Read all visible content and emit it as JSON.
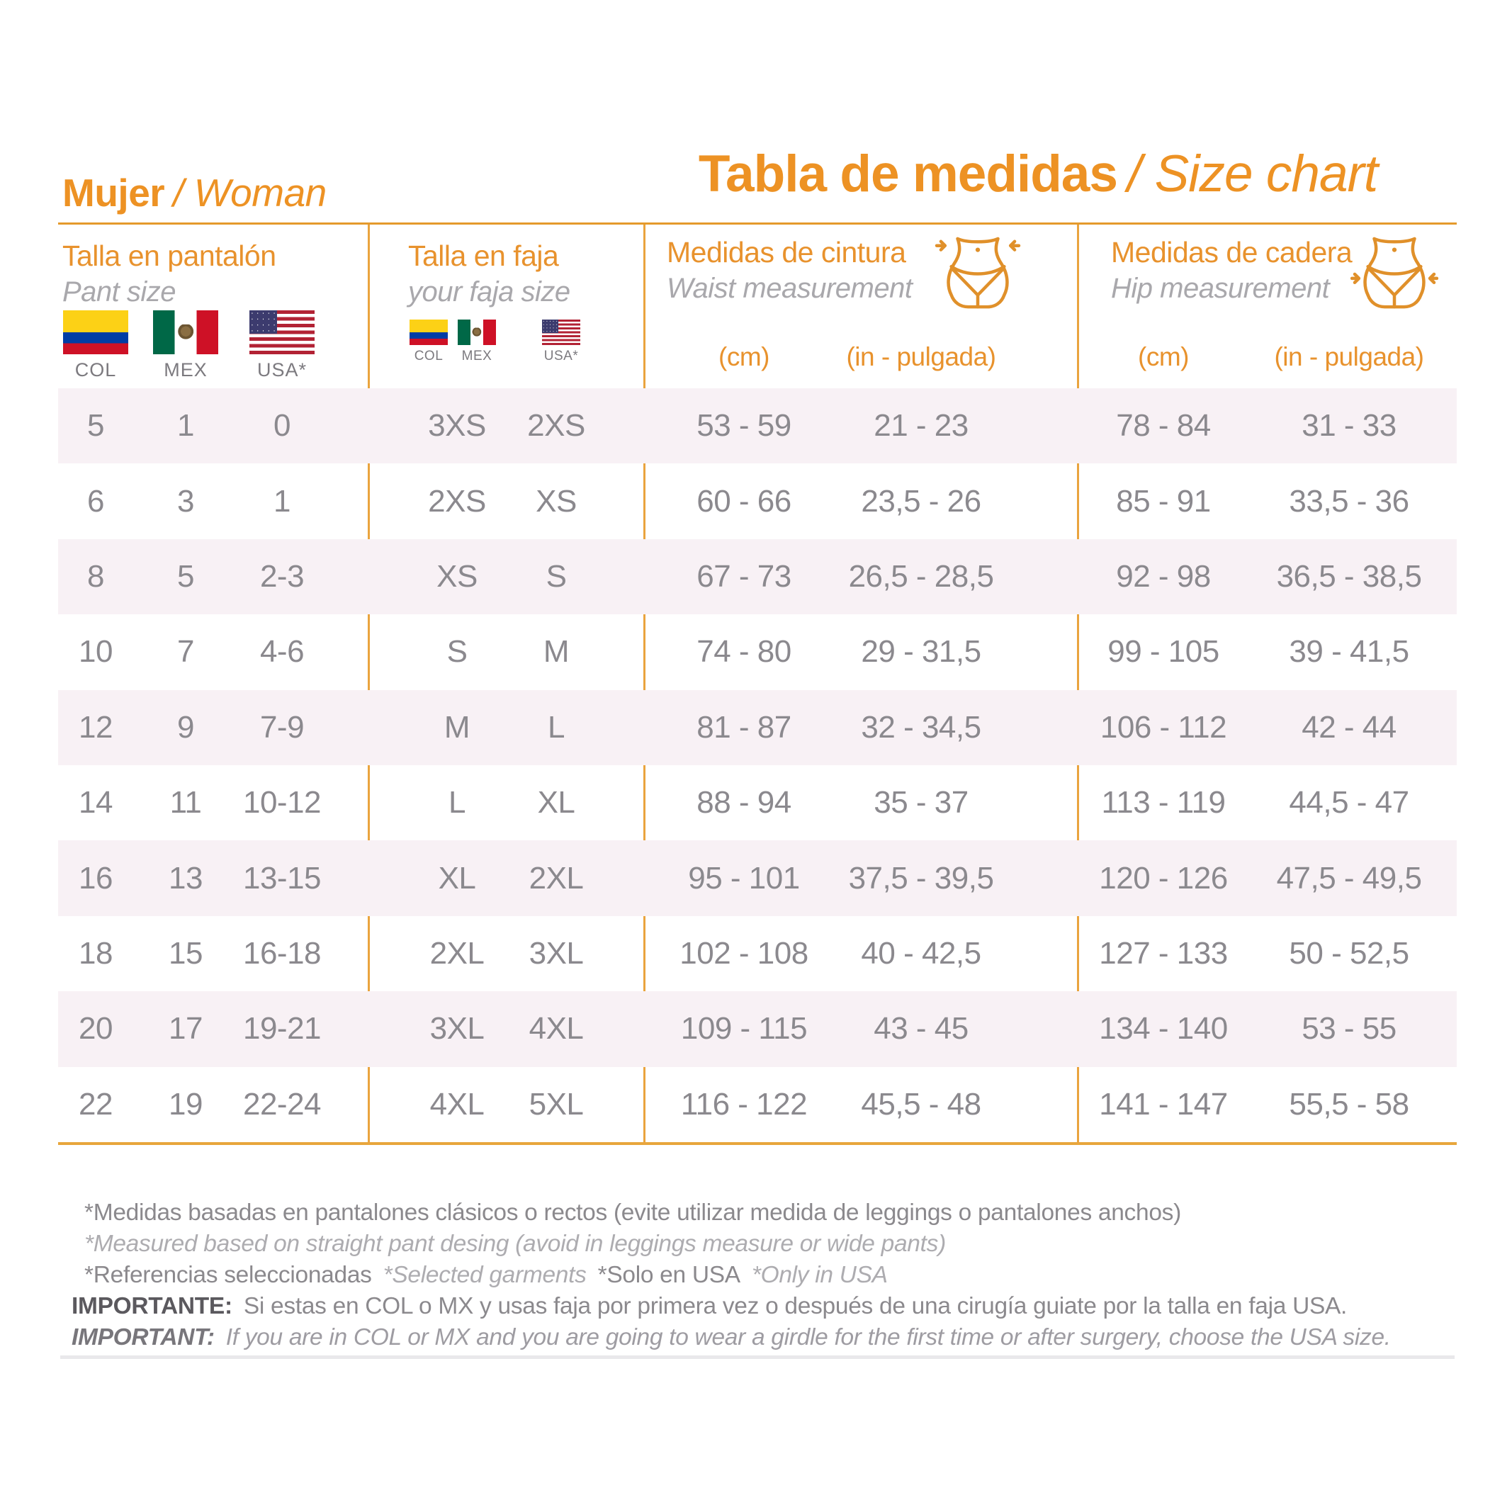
{
  "header": {
    "subject": "Mujer",
    "subject_en": "/ Woman",
    "title": "Tabla de medidas",
    "title_en": "/ Size chart"
  },
  "colors": {
    "accent_orange": "#ED9224",
    "line_orange": "#EAA43E",
    "row_pink": "#F8F1F5",
    "value_gray": "#8B898E"
  },
  "columns": {
    "pant": {
      "title": "Talla en pantalón",
      "subtitle": "Pant size",
      "flag_labels": [
        "COL",
        "MEX",
        "USA*"
      ]
    },
    "faja": {
      "title": "Talla en faja",
      "subtitle": "your faja size",
      "flag_labels": [
        "COL",
        "MEX",
        "USA*"
      ]
    },
    "waist": {
      "title": "Medidas de cintura",
      "subtitle": "Waist measurement",
      "units": [
        "(cm)",
        "(in - pulgada)"
      ]
    },
    "hip": {
      "title": "Medidas de cadera",
      "subtitle": "Hip measurement",
      "units": [
        "(cm)",
        "(in - pulgada)"
      ]
    }
  },
  "rows": [
    {
      "pant_col": "5",
      "pant_mex": "1",
      "pant_usa": "0",
      "faja_colmex": "3XS",
      "faja_usa": "2XS",
      "waist_cm": "53 - 59",
      "waist_in": "21 - 23",
      "hip_cm": "78 - 84",
      "hip_in": "31 - 33"
    },
    {
      "pant_col": "6",
      "pant_mex": "3",
      "pant_usa": "1",
      "faja_colmex": "2XS",
      "faja_usa": "XS",
      "waist_cm": "60 - 66",
      "waist_in": "23,5 - 26",
      "hip_cm": "85 - 91",
      "hip_in": "33,5 - 36"
    },
    {
      "pant_col": "8",
      "pant_mex": "5",
      "pant_usa": "2-3",
      "faja_colmex": "XS",
      "faja_usa": "S",
      "waist_cm": "67 - 73",
      "waist_in": "26,5 - 28,5",
      "hip_cm": "92 - 98",
      "hip_in": "36,5 - 38,5"
    },
    {
      "pant_col": "10",
      "pant_mex": "7",
      "pant_usa": "4-6",
      "faja_colmex": "S",
      "faja_usa": "M",
      "waist_cm": "74 - 80",
      "waist_in": "29 - 31,5",
      "hip_cm": "99 - 105",
      "hip_in": "39 - 41,5"
    },
    {
      "pant_col": "12",
      "pant_mex": "9",
      "pant_usa": "7-9",
      "faja_colmex": "M",
      "faja_usa": "L",
      "waist_cm": "81 - 87",
      "waist_in": "32 - 34,5",
      "hip_cm": "106 - 112",
      "hip_in": "42 - 44"
    },
    {
      "pant_col": "14",
      "pant_mex": "11",
      "pant_usa": "10-12",
      "faja_colmex": "L",
      "faja_usa": "XL",
      "waist_cm": "88 - 94",
      "waist_in": "35 - 37",
      "hip_cm": "113 - 119",
      "hip_in": "44,5 - 47"
    },
    {
      "pant_col": "16",
      "pant_mex": "13",
      "pant_usa": "13-15",
      "faja_colmex": "XL",
      "faja_usa": "2XL",
      "waist_cm": "95 - 101",
      "waist_in": "37,5 - 39,5",
      "hip_cm": "120 - 126",
      "hip_in": "47,5 - 49,5"
    },
    {
      "pant_col": "18",
      "pant_mex": "15",
      "pant_usa": "16-18",
      "faja_colmex": "2XL",
      "faja_usa": "3XL",
      "waist_cm": "102 - 108",
      "waist_in": "40 - 42,5",
      "hip_cm": "127 - 133",
      "hip_in": "50 - 52,5"
    },
    {
      "pant_col": "20",
      "pant_mex": "17",
      "pant_usa": "19-21",
      "faja_colmex": "3XL",
      "faja_usa": "4XL",
      "waist_cm": "109 - 115",
      "waist_in": "43 - 45",
      "hip_cm": "134 - 140",
      "hip_in": "53 - 55"
    },
    {
      "pant_col": "22",
      "pant_mex": "19",
      "pant_usa": "22-24",
      "faja_colmex": "4XL",
      "faja_usa": "5XL",
      "waist_cm": "116 - 122",
      "waist_in": "45,5 - 48",
      "hip_cm": "141 - 147",
      "hip_in": "55,5 - 58"
    }
  ],
  "notes": {
    "line1": "*Medidas basadas en pantalones clásicos o rectos (evite utilizar medida de leggings o pantalones anchos)",
    "line2": "*Measured based on straight pant desing (avoid in leggings measure or wide pants)",
    "line3_parts": [
      "*Referencias seleccionadas",
      "*Selected garments",
      "*Solo en USA",
      "*Only in USA"
    ],
    "importante_label": "IMPORTANTE:",
    "importante_text": "Si estas en COL o MX y usas faja por primera vez o después de una cirugía guiate por la talla en faja USA.",
    "important_label": "IMPORTANT:",
    "important_text": "If you are in COL or MX and you are going to wear a girdle for the first time or after surgery, choose the USA size."
  }
}
